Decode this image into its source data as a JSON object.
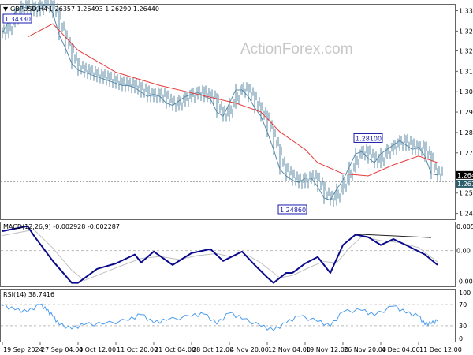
{
  "header": {
    "symbol": "GBPUSD,H4",
    "ohlc": "1.26357 1.26493 1.26290 1.26440"
  },
  "watermark": "ActionForex.com",
  "colors": {
    "price": "#5b8aa6",
    "ma": "#e83a3a",
    "macd": "#0a0a8c",
    "signal": "#c0c0c0",
    "rsi": "#4a9cf0",
    "label_box": "#1a1ab0"
  },
  "chart_data": [
    {
      "type": "line",
      "panel": "price",
      "ylim": [
        1.2443,
        1.342
      ],
      "yticks": [
        "1.33895",
        "1.32970",
        "1.32070",
        "1.31145",
        "1.30220",
        "1.29295",
        "1.28370",
        "1.27445",
        "1.25620",
        "1.24695"
      ],
      "ytick_values": [
        1.33895,
        1.3297,
        1.3207,
        1.31145,
        1.3022,
        1.29295,
        1.2837,
        1.27445,
        1.2562,
        1.24695
      ],
      "current_price": "1.26440",
      "current_value": 1.2644,
      "ref_price": "1.26150",
      "ref_value": 1.2615,
      "annotations": [
        {
          "text": "1.34330",
          "i": 2,
          "value": 1.3433
        },
        {
          "text": "1.28100",
          "i": 58,
          "value": 1.281
        },
        {
          "text": "1.24860",
          "i": 46,
          "value": 1.2486
        }
      ],
      "close": [
        1.329,
        1.334,
        1.338,
        1.341,
        1.34,
        1.339,
        1.342,
        1.341,
        1.338,
        1.328,
        1.322,
        1.315,
        1.312,
        1.311,
        1.31,
        1.309,
        1.308,
        1.307,
        1.306,
        1.305,
        1.305,
        1.304,
        1.302,
        1.3,
        1.301,
        1.3,
        1.297,
        1.296,
        1.298,
        1.3,
        1.301,
        1.302,
        1.3,
        1.299,
        1.293,
        1.291,
        1.297,
        1.303,
        1.303,
        1.3,
        1.295,
        1.291,
        1.284,
        1.276,
        1.267,
        1.264,
        1.262,
        1.261,
        1.263,
        1.263,
        1.259,
        1.254,
        1.253,
        1.258,
        1.262,
        1.268,
        1.274,
        1.275,
        1.272,
        1.27,
        1.274,
        1.276,
        1.278,
        1.28,
        1.278,
        1.276,
        1.277,
        1.273,
        1.265,
        1.2644
      ],
      "ma": [
        [
          4,
          1.327
        ],
        [
          8,
          1.333
        ],
        [
          12,
          1.321
        ],
        [
          18,
          1.311
        ],
        [
          25,
          1.305
        ],
        [
          31,
          1.301
        ],
        [
          37,
          1.297
        ],
        [
          41,
          1.293
        ],
        [
          44,
          1.284
        ],
        [
          48,
          1.276
        ],
        [
          50,
          1.27
        ],
        [
          54,
          1.265
        ],
        [
          58,
          1.264
        ],
        [
          62,
          1.269
        ],
        [
          66,
          1.273
        ],
        [
          69,
          1.27
        ]
      ]
    },
    {
      "type": "line",
      "panel": "macd",
      "title": "MACD(12,26,9) -0.002928 -0.002287",
      "ylim": [
        -0.0072,
        0.0058
      ],
      "yticks": [
        "0.005359",
        "0.00",
        "-0.006798"
      ],
      "ytick_values": [
        0.005359,
        0,
        -0.006798
      ],
      "macd": [
        [
          0,
          0.0039
        ],
        [
          4,
          0.0049
        ],
        [
          5,
          0.003
        ],
        [
          8,
          -0.0021
        ],
        [
          11,
          -0.0065
        ],
        [
          12,
          -0.0065
        ],
        [
          15,
          -0.0037
        ],
        [
          18,
          -0.0026
        ],
        [
          21,
          -0.0008
        ],
        [
          22,
          -0.0024
        ],
        [
          24,
          -0.0002
        ],
        [
          27,
          -0.0029
        ],
        [
          30,
          -0.0005
        ],
        [
          33,
          0.0003
        ],
        [
          35,
          -0.0021
        ],
        [
          38,
          -0.0002
        ],
        [
          40,
          -0.0029
        ],
        [
          42,
          -0.0054
        ],
        [
          43,
          -0.0065
        ],
        [
          45,
          -0.0045
        ],
        [
          46,
          -0.0045
        ],
        [
          48,
          -0.0026
        ],
        [
          50,
          -0.0013
        ],
        [
          51,
          -0.0029
        ],
        [
          52,
          -0.0045
        ],
        [
          54,
          0.0011
        ],
        [
          56,
          0.0032
        ],
        [
          58,
          0.0027
        ],
        [
          60,
          0.0011
        ],
        [
          62,
          0.0023
        ],
        [
          64,
          0.0011
        ],
        [
          67,
          -0.0008
        ],
        [
          69,
          -0.0029
        ]
      ],
      "signal": [
        [
          0,
          0.003
        ],
        [
          5,
          0.0042
        ],
        [
          8,
          0.0005
        ],
        [
          11,
          -0.004
        ],
        [
          13,
          -0.006
        ],
        [
          16,
          -0.0045
        ],
        [
          19,
          -0.003
        ],
        [
          22,
          -0.0016
        ],
        [
          25,
          -0.0012
        ],
        [
          28,
          -0.0018
        ],
        [
          31,
          -0.001
        ],
        [
          34,
          -0.0006
        ],
        [
          36,
          -0.0012
        ],
        [
          39,
          -0.001
        ],
        [
          41,
          -0.0025
        ],
        [
          44,
          -0.0055
        ],
        [
          46,
          -0.005
        ],
        [
          49,
          -0.0032
        ],
        [
          51,
          -0.0022
        ],
        [
          53,
          -0.0025
        ],
        [
          55,
          0.0005
        ],
        [
          57,
          0.0028
        ],
        [
          60,
          0.002
        ],
        [
          63,
          0.0016
        ],
        [
          66,
          0.0006
        ],
        [
          69,
          -0.0023
        ]
      ],
      "trendline": [
        [
          56,
          0.0033
        ],
        [
          68,
          0.0026
        ]
      ]
    },
    {
      "type": "line",
      "panel": "rsi",
      "title": "RSI(14) 38.7416",
      "ylim": [
        0,
        100
      ],
      "yticks": [
        "100",
        "70",
        "30",
        "0"
      ],
      "ytick_values": [
        100,
        70,
        30,
        0
      ],
      "values": [
        [
          0,
          68
        ],
        [
          2,
          60
        ],
        [
          4,
          56
        ],
        [
          6,
          70
        ],
        [
          7,
          59
        ],
        [
          8,
          48
        ],
        [
          9,
          32
        ],
        [
          11,
          24
        ],
        [
          13,
          32
        ],
        [
          16,
          33
        ],
        [
          20,
          40
        ],
        [
          22,
          51
        ],
        [
          24,
          35
        ],
        [
          26,
          40
        ],
        [
          30,
          48
        ],
        [
          32,
          52
        ],
        [
          34,
          33
        ],
        [
          36,
          54
        ],
        [
          38,
          43
        ],
        [
          41,
          29
        ],
        [
          43,
          21
        ],
        [
          45,
          35
        ],
        [
          47,
          48
        ],
        [
          50,
          38
        ],
        [
          52,
          29
        ],
        [
          54,
          56
        ],
        [
          57,
          59
        ],
        [
          59,
          49
        ],
        [
          62,
          67
        ],
        [
          64,
          54
        ],
        [
          66,
          48
        ],
        [
          67,
          32
        ],
        [
          68,
          34
        ],
        [
          69,
          38.7
        ]
      ]
    }
  ],
  "xaxis": {
    "labels": [
      "19 Sep 2024",
      "27 Sep 04:00",
      "4 Oct 12:00",
      "11 Oct 20:00",
      "21 Oct 04:00",
      "28 Oct 12:00",
      "4 Nov 20:00",
      "12 Nov 04:00",
      "19 Nov 12:00",
      "26 Nov 20:00",
      "4 Dec 04:00",
      "11 Dec 12:00"
    ]
  }
}
